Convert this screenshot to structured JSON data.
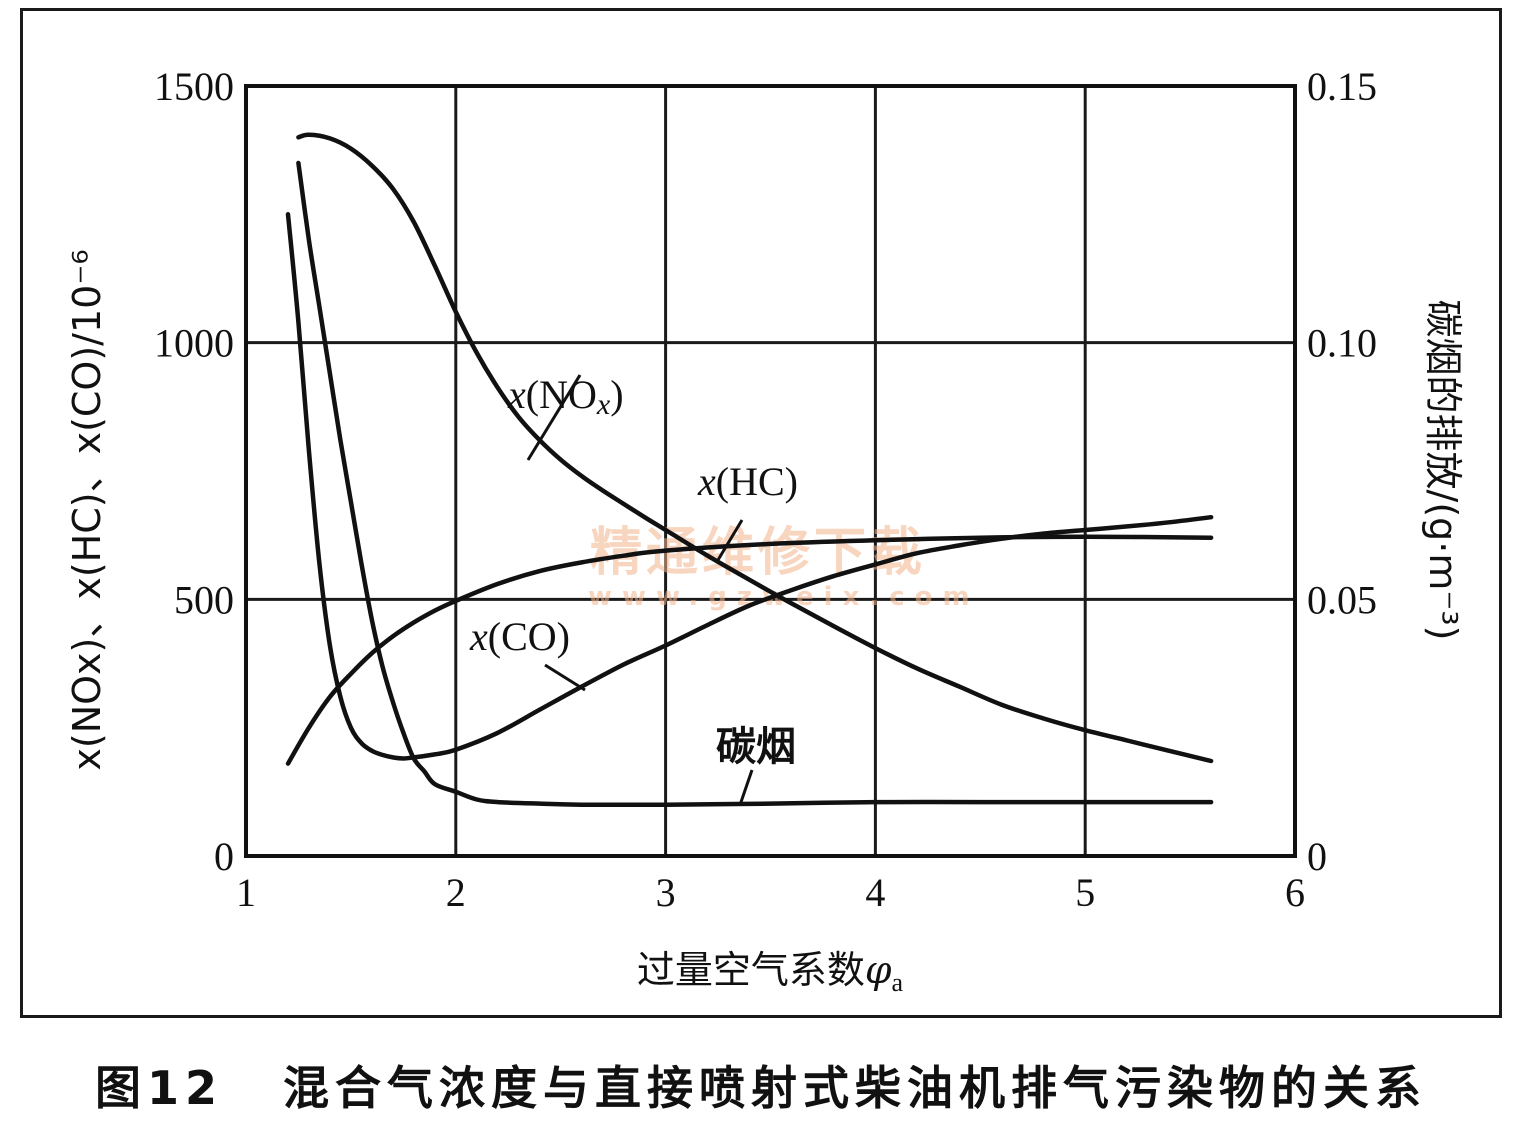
{
  "chart_data": {
    "type": "line",
    "xlabel": "过量空气系数φa",
    "xlabel_text": "过量空气系数",
    "xlabel_symbol": "φ",
    "xlabel_subscript": "a",
    "ylabel_left": "x(NOx)、x(HC)、x(CO)/10⁻⁶",
    "ylabel_right": "碳烟的排放/(g·m⁻³)",
    "xlim": [
      1,
      6
    ],
    "ylim_left": [
      0,
      1500
    ],
    "ylim_right": [
      0,
      0.15
    ],
    "x_ticks": [
      "1",
      "2",
      "3",
      "4",
      "5",
      "6"
    ],
    "y_ticks_left": [
      "0",
      "500",
      "1000",
      "1500"
    ],
    "y_ticks_right": [
      "0",
      "0.05",
      "0.10",
      "0.15"
    ],
    "grid": true,
    "series": [
      {
        "name": "x(NOx)",
        "label_parts": {
          "pre": "x",
          "open": "(NO",
          "sub": "x",
          "close": ")"
        },
        "axis": "left",
        "x": [
          1.25,
          1.3,
          1.4,
          1.5,
          1.6,
          1.7,
          1.8,
          1.9,
          2.0,
          2.1,
          2.2,
          2.3,
          2.4,
          2.5,
          2.6,
          2.7,
          2.8,
          2.9,
          3.0,
          3.2,
          3.4,
          3.6,
          3.8,
          4.0,
          4.2,
          4.4,
          4.6,
          4.8,
          5.0,
          5.2,
          5.4,
          5.6
        ],
        "y": [
          1400,
          1405,
          1398,
          1378,
          1345,
          1300,
          1235,
          1150,
          1060,
          980,
          912,
          855,
          810,
          772,
          740,
          712,
          686,
          660,
          635,
          585,
          538,
          492,
          448,
          405,
          365,
          330,
          295,
          268,
          245,
          225,
          205,
          185
        ]
      },
      {
        "name": "x(HC)",
        "label_parts": {
          "pre": "x",
          "open": "(HC",
          "sub": "",
          "close": ")"
        },
        "axis": "left",
        "x": [
          1.2,
          1.3,
          1.4,
          1.5,
          1.6,
          1.7,
          1.8,
          1.9,
          2.0,
          2.2,
          2.4,
          2.6,
          2.8,
          3.0,
          3.5,
          4.0,
          4.5,
          5.0,
          5.6
        ],
        "y": [
          180,
          250,
          310,
          355,
          395,
          428,
          455,
          478,
          497,
          530,
          555,
          572,
          585,
          595,
          608,
          615,
          620,
          622,
          620
        ]
      },
      {
        "name": "x(CO)",
        "label_parts": {
          "pre": "x",
          "open": "(CO",
          "sub": "",
          "close": ")"
        },
        "axis": "left",
        "x": [
          1.2,
          1.25,
          1.3,
          1.35,
          1.4,
          1.45,
          1.5,
          1.55,
          1.6,
          1.65,
          1.7,
          1.75,
          1.8,
          1.9,
          2.0,
          2.2,
          2.4,
          2.6,
          2.8,
          3.0,
          3.2,
          3.4,
          3.6,
          3.8,
          4.0,
          4.2,
          4.4,
          4.6,
          4.8,
          5.0,
          5.2,
          5.4,
          5.6
        ],
        "y": [
          1250,
          1040,
          790,
          570,
          410,
          310,
          250,
          220,
          205,
          197,
          192,
          190,
          192,
          198,
          207,
          240,
          285,
          330,
          373,
          410,
          450,
          488,
          518,
          545,
          568,
          590,
          605,
          618,
          628,
          635,
          642,
          650,
          660
        ]
      },
      {
        "name": "碳烟",
        "label_parts": {
          "pre": "",
          "open": "碳烟",
          "sub": "",
          "close": ""
        },
        "axis": "right",
        "x": [
          1.25,
          1.3,
          1.35,
          1.4,
          1.45,
          1.5,
          1.55,
          1.6,
          1.65,
          1.7,
          1.75,
          1.8,
          1.85,
          1.9,
          2.0,
          2.1,
          2.2,
          2.4,
          2.6,
          3.0,
          3.5,
          4.0,
          4.5,
          5.0,
          5.6
        ],
        "y": [
          0.135,
          0.12,
          0.107,
          0.094,
          0.081,
          0.069,
          0.057,
          0.046,
          0.037,
          0.03,
          0.024,
          0.019,
          0.0165,
          0.014,
          0.0125,
          0.011,
          0.0105,
          0.0102,
          0.01,
          0.01,
          0.0102,
          0.0105,
          0.0105,
          0.0105,
          0.0105
        ]
      }
    ]
  },
  "watermark": {
    "title": "精通维修下载",
    "url": "www.gzweix.com"
  },
  "caption": {
    "figure_number": "图12",
    "text": "混合气浓度与直接喷射式柴油机排气污染物的关系"
  }
}
